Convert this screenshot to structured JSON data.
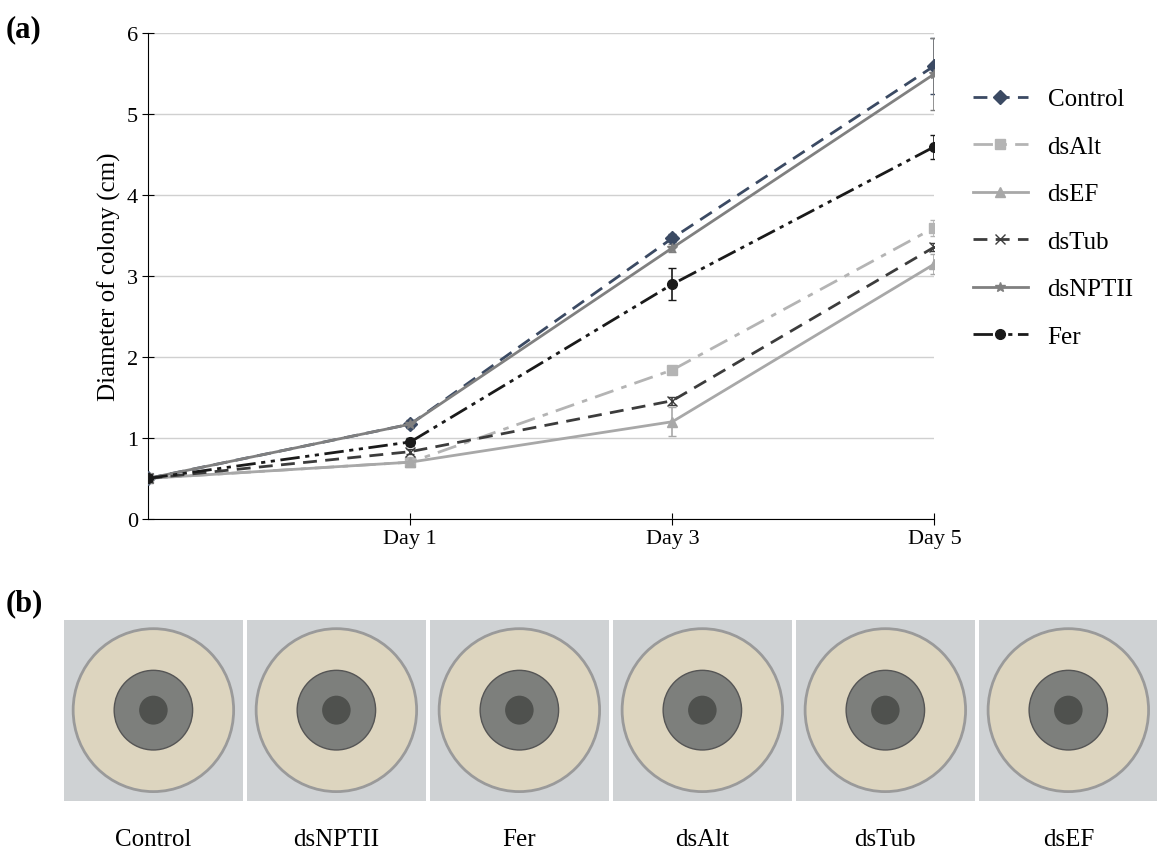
{
  "chart_data": {
    "type": "line",
    "title": "(a)",
    "y_label": "Diameter of colony (cm)",
    "categories": [
      null,
      "Day 1",
      "Day 3",
      "Day 5"
    ],
    "xlim": [
      0,
      3
    ],
    "ylim": [
      0,
      6
    ],
    "yticks": [
      0,
      1,
      2,
      3,
      4,
      5,
      6
    ],
    "grid": "y",
    "legend": "right",
    "series": [
      {
        "name": "Control",
        "color": "#3b4a63",
        "marker": "diamond",
        "line_style": "dashed",
        "values": [
          0.5,
          1.17,
          3.47,
          5.6
        ],
        "errors": [
          0.02,
          0.05,
          0.05,
          0.35
        ]
      },
      {
        "name": "dsAlt",
        "color": "#b4b4b4",
        "marker": "square",
        "line_style": "dashdot",
        "values": [
          0.5,
          0.7,
          1.84,
          3.6
        ],
        "errors": [
          0.02,
          0.03,
          0.04,
          0.1
        ]
      },
      {
        "name": "dsEF",
        "color": "#a8a8a8",
        "marker": "triangle",
        "line_style": "solid",
        "values": [
          0.5,
          0.7,
          1.2,
          3.15
        ],
        "errors": [
          0.02,
          0.03,
          0.18,
          0.12
        ]
      },
      {
        "name": "dsTub",
        "color": "#3c3c3c",
        "marker": "x",
        "line_style": "dashed",
        "values": [
          0.5,
          0.83,
          1.46,
          3.36
        ],
        "errors": [
          0.02,
          0.03,
          0.05,
          0.05
        ]
      },
      {
        "name": "dsNPTII",
        "color": "#808080",
        "marker": "asterisk",
        "line_style": "solid",
        "values": [
          0.5,
          1.17,
          3.35,
          5.5
        ],
        "errors": [
          0.02,
          0.04,
          0.05,
          0.45
        ]
      },
      {
        "name": "Fer",
        "color": "#1a1a1a",
        "marker": "circle",
        "line_style": "dashdotdot",
        "values": [
          0.5,
          0.95,
          2.9,
          4.6
        ],
        "errors": [
          0.02,
          0.05,
          0.2,
          0.15
        ]
      }
    ]
  },
  "photo_panel": {
    "title": "(b)",
    "captions": [
      "Control",
      "dsNPTII",
      "Fer",
      "dsAlt",
      "dsTub",
      "dsEF"
    ]
  }
}
